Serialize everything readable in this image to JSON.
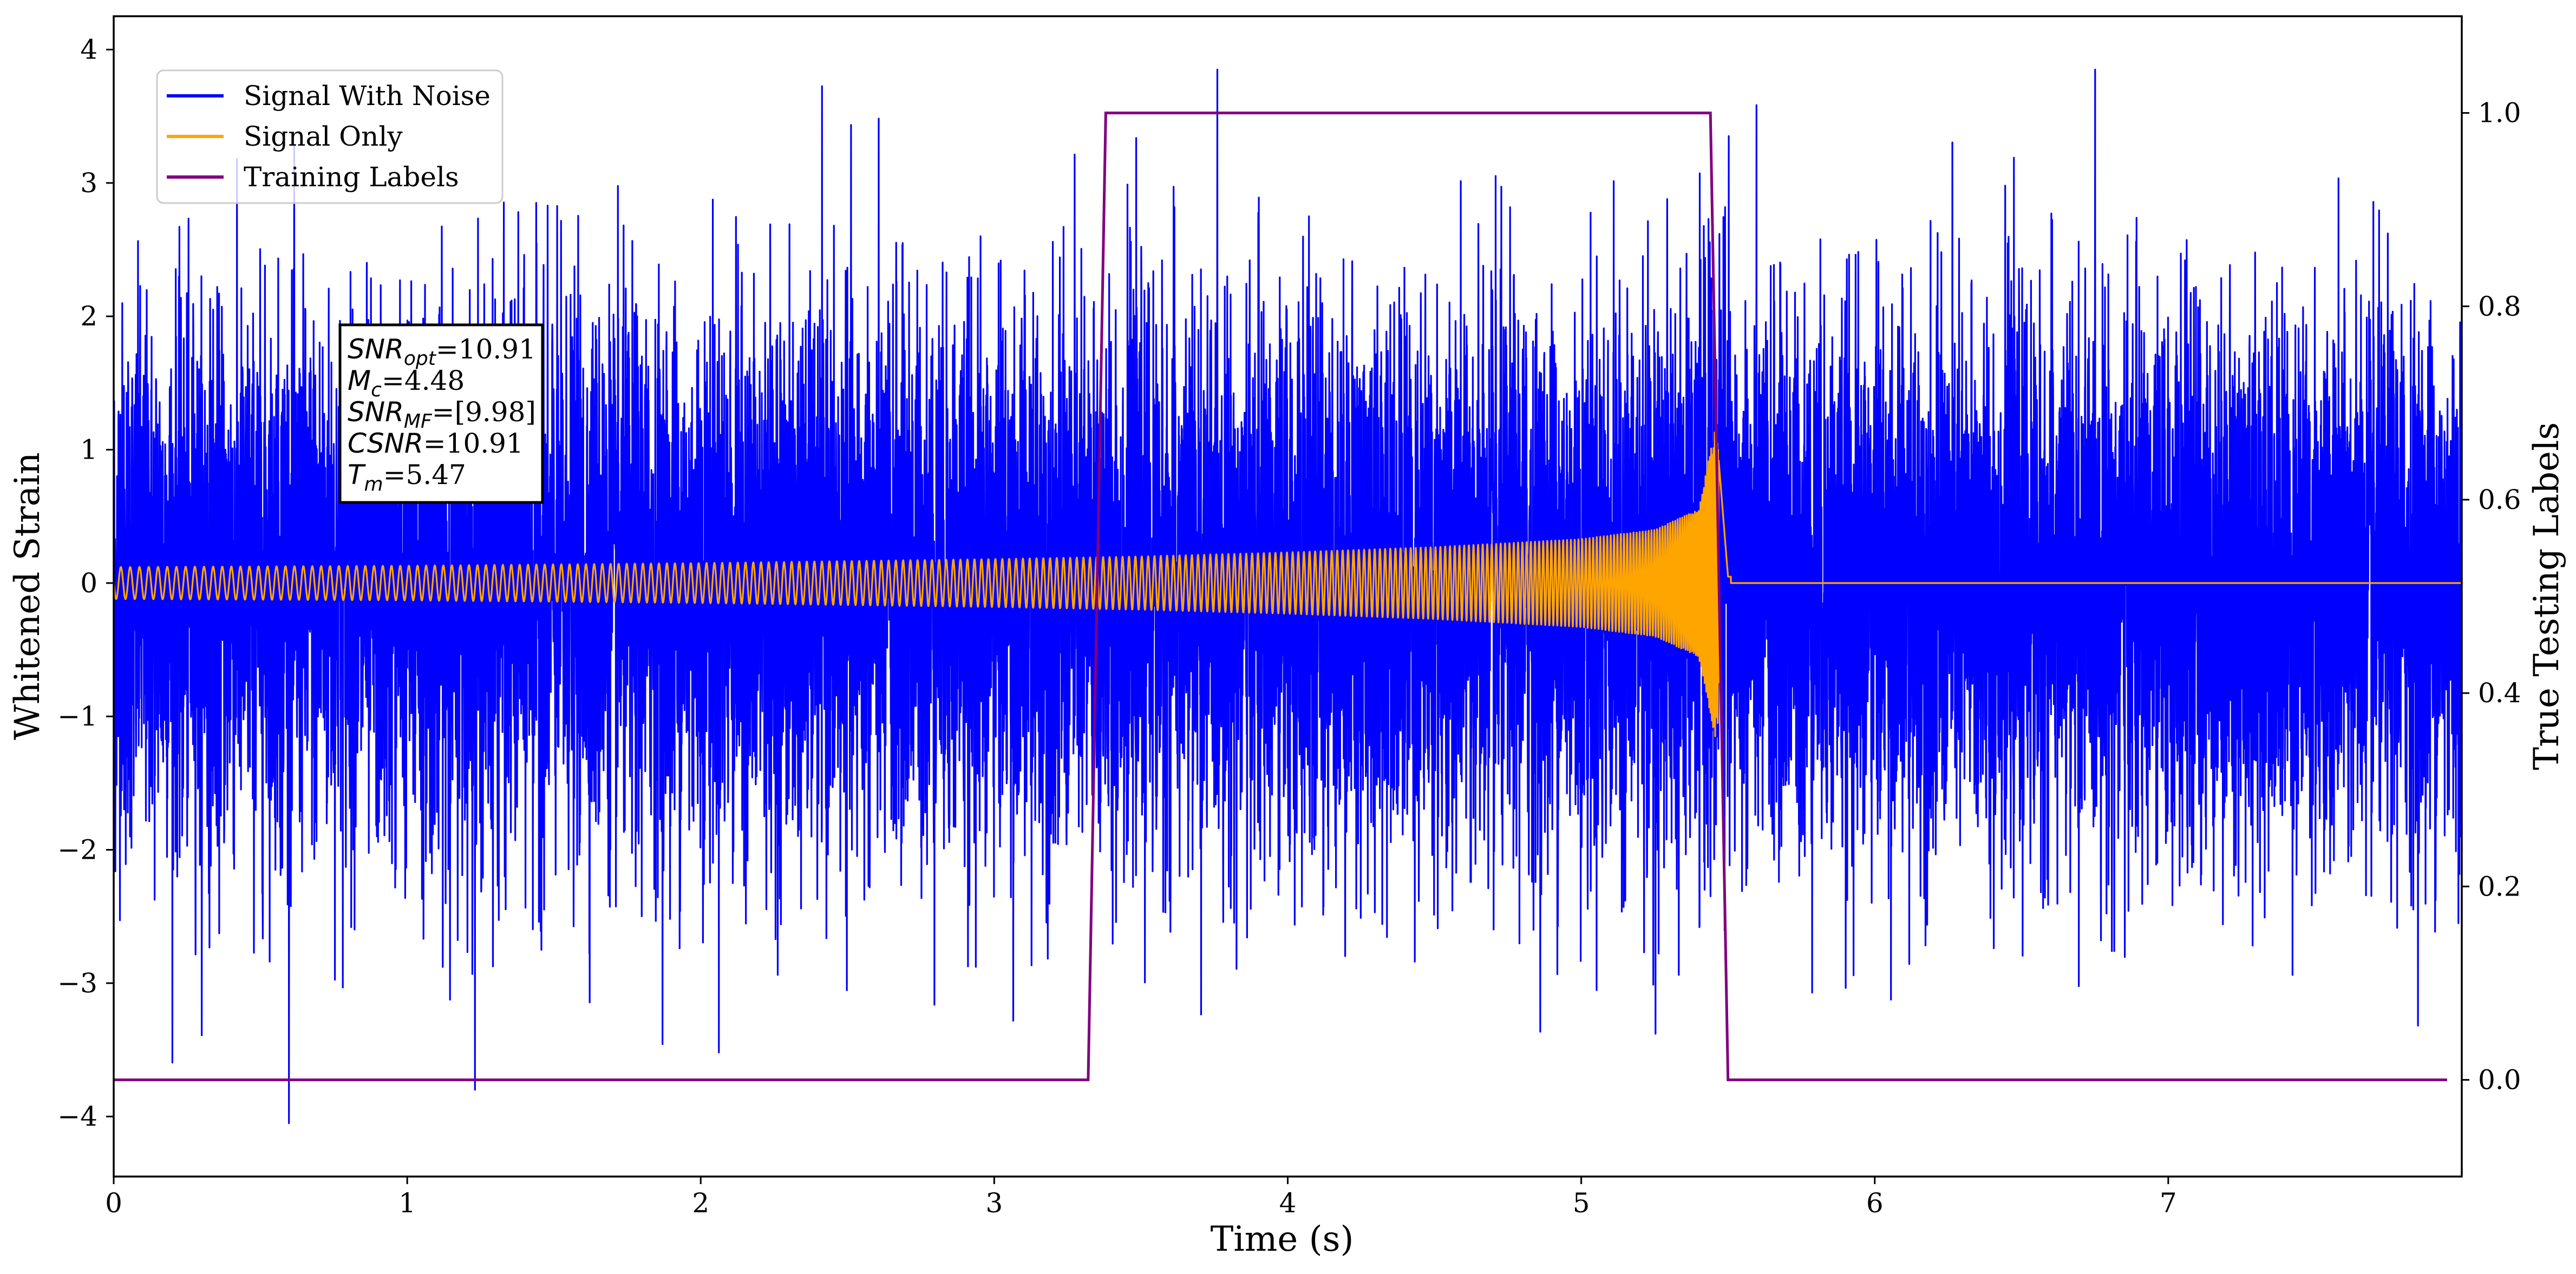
{
  "chart_data": {
    "type": "line",
    "xlabel": "Time (s)",
    "ylabel": "Whitened Strain",
    "y2label": "True Testing Labels",
    "xlim": [
      0,
      8.0
    ],
    "ylim": [
      -4.45,
      4.25
    ],
    "y2lim": [
      -0.1,
      1.1
    ],
    "x_ticks": [
      "0",
      "1",
      "2",
      "3",
      "4",
      "5",
      "6",
      "7"
    ],
    "y_ticks": [
      "−4",
      "−3",
      "−2",
      "−1",
      "0",
      "1",
      "2",
      "3",
      "4"
    ],
    "y2_ticks": [
      "0.0",
      "0.2",
      "0.4",
      "0.6",
      "0.8",
      "1.0"
    ],
    "grid": false,
    "legend": {
      "position": "top-left",
      "entries": [
        {
          "label": "Signal With Noise",
          "color": "#0000ff"
        },
        {
          "label": "Signal Only",
          "color": "#ffa500"
        },
        {
          "label": "Training Labels",
          "color": "#800080"
        }
      ]
    },
    "annotation": {
      "position": "upper-left",
      "lines": [
        {
          "label": "SNR",
          "sub": "opt",
          "value": "=10.91"
        },
        {
          "label": "M",
          "sub": "c",
          "value": "=4.48"
        },
        {
          "label": "SNR",
          "sub": "MF",
          "value": "=[9.98]"
        },
        {
          "label": "CSNR",
          "sub": "",
          "value": "=10.91"
        },
        {
          "label": "T",
          "sub": "m",
          "value": "=5.47"
        }
      ]
    },
    "series": [
      {
        "name": "Signal With Noise",
        "color": "#0000ff",
        "axis": "left",
        "description_points": {
          "x_range": [
            0,
            8.0
          ],
          "approx_noise_std": 1.0,
          "approx_min": -4.05,
          "approx_max": 3.85
        }
      },
      {
        "name": "Signal Only",
        "color": "#ffa500",
        "axis": "left",
        "envelope": {
          "x": [
            0.0,
            1.0,
            2.0,
            3.0,
            3.5,
            4.0,
            4.5,
            5.0,
            5.25,
            5.4,
            5.46,
            5.5,
            8.0
          ],
          "amp": [
            0.12,
            0.13,
            0.15,
            0.18,
            0.2,
            0.23,
            0.27,
            0.33,
            0.4,
            0.55,
            1.2,
            0.05,
            0.0
          ]
        },
        "merger_time": 5.47
      },
      {
        "name": "Training Labels",
        "color": "#800080",
        "axis": "right",
        "x": [
          0.0,
          3.32,
          3.38,
          5.44,
          5.5,
          7.95
        ],
        "y": [
          0.0,
          0.0,
          1.0,
          1.0,
          0.0,
          0.0
        ]
      }
    ]
  }
}
